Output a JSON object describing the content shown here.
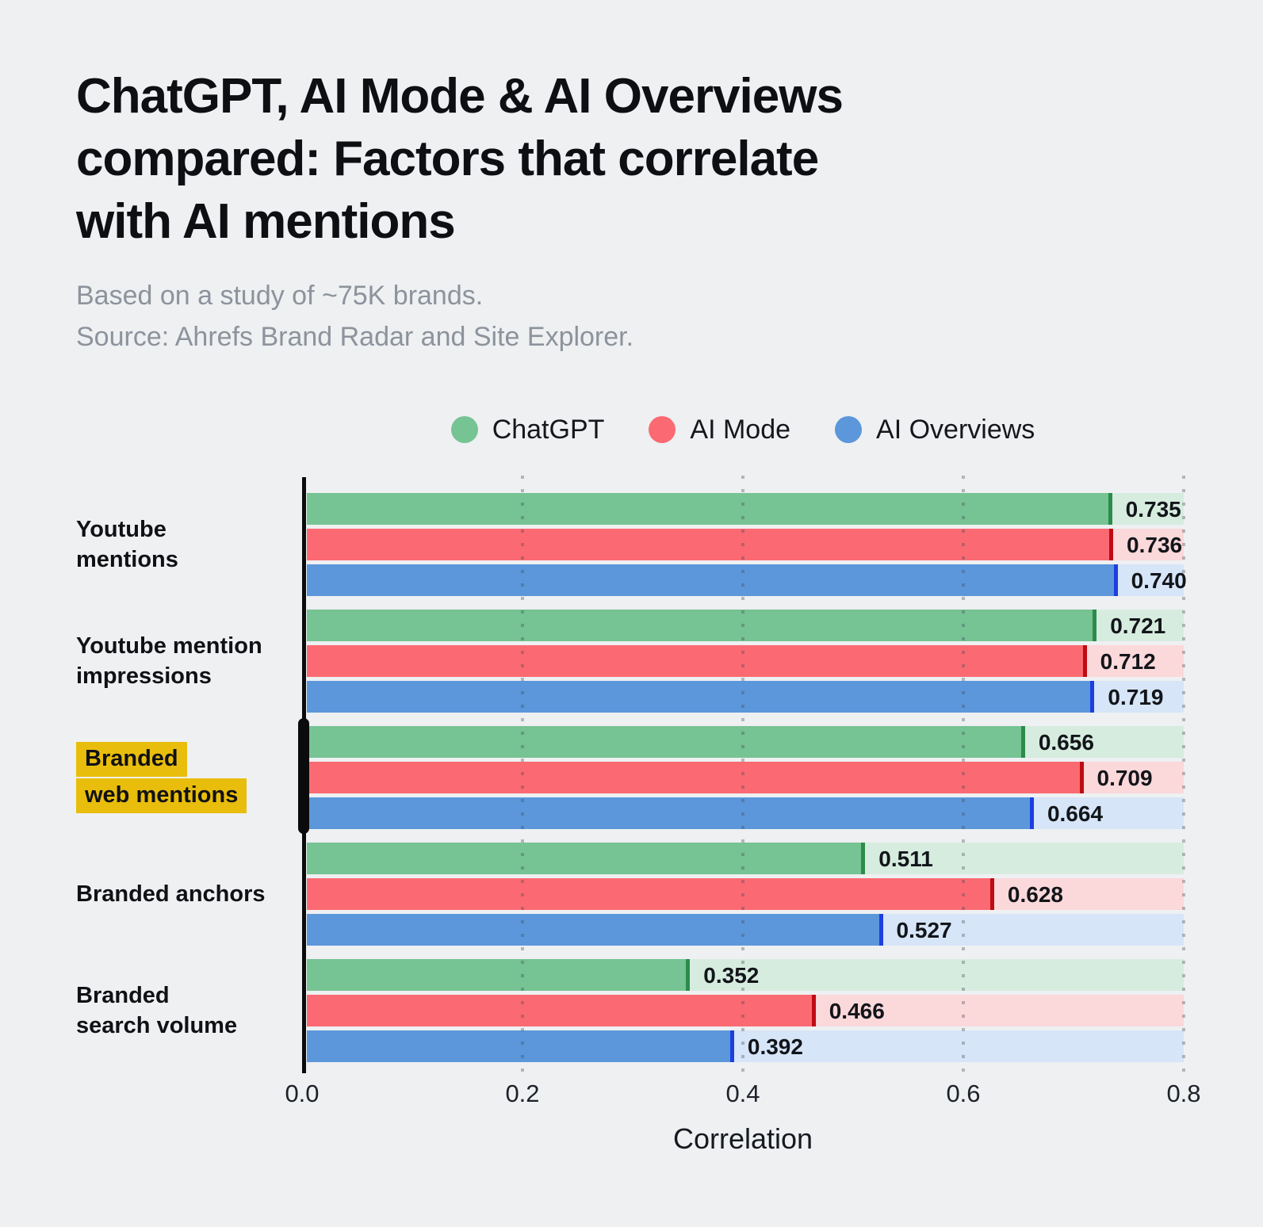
{
  "page": {
    "background": "#eef0f2"
  },
  "header": {
    "title_lines": [
      "ChatGPT, AI Mode & AI Overviews",
      "compared: Factors that correlate",
      "with AI mentions"
    ],
    "subtitle_lines": [
      "Based on a study of ~75K brands.",
      "Source: Ahrefs Brand Radar and Site Explorer."
    ]
  },
  "chart_data": {
    "type": "bar",
    "orientation": "horizontal",
    "title": "ChatGPT, AI Mode & AI Overviews compared: Factors that correlate with AI mentions",
    "subtitle": "Based on a study of ~75K brands. Source: Ahrefs Brand Radar and Site Explorer.",
    "xlabel": "Correlation",
    "xlim": [
      0,
      0.8
    ],
    "xticks": [
      "0.0",
      "0.2",
      "0.4",
      "0.6",
      "0.8"
    ],
    "grid": "vertical-dotted",
    "legend_position": "top-center",
    "categories": [
      "Youtube mentions",
      "Youtube mention impressions",
      "Branded web mentions",
      "Branded anchors",
      "Branded search volume"
    ],
    "category_label_lines": [
      [
        "Youtube",
        "mentions"
      ],
      [
        "Youtube mention",
        "impressions"
      ],
      [
        "Branded",
        "web mentions"
      ],
      [
        "Branded anchors"
      ],
      [
        "Branded",
        "search volume"
      ]
    ],
    "highlighted_category_index": 2,
    "highlight_color": "#e9bd0c",
    "value_label_decimals": 3,
    "series": [
      {
        "name": "ChatGPT",
        "color": "#76c393",
        "light_color": "#d6ecdf",
        "cap_color": "#2c8c4b",
        "values": [
          0.735,
          0.721,
          0.656,
          0.511,
          0.352
        ]
      },
      {
        "name": "AI Mode",
        "color": "#fb6a72",
        "light_color": "#fbd8da",
        "cap_color": "#bf0b12",
        "values": [
          0.736,
          0.712,
          0.709,
          0.628,
          0.466
        ]
      },
      {
        "name": "AI Overviews",
        "color": "#5b97da",
        "light_color": "#d6e5f7",
        "cap_color": "#1c3fe0",
        "values": [
          0.74,
          0.719,
          0.664,
          0.527,
          0.392
        ]
      }
    ]
  }
}
